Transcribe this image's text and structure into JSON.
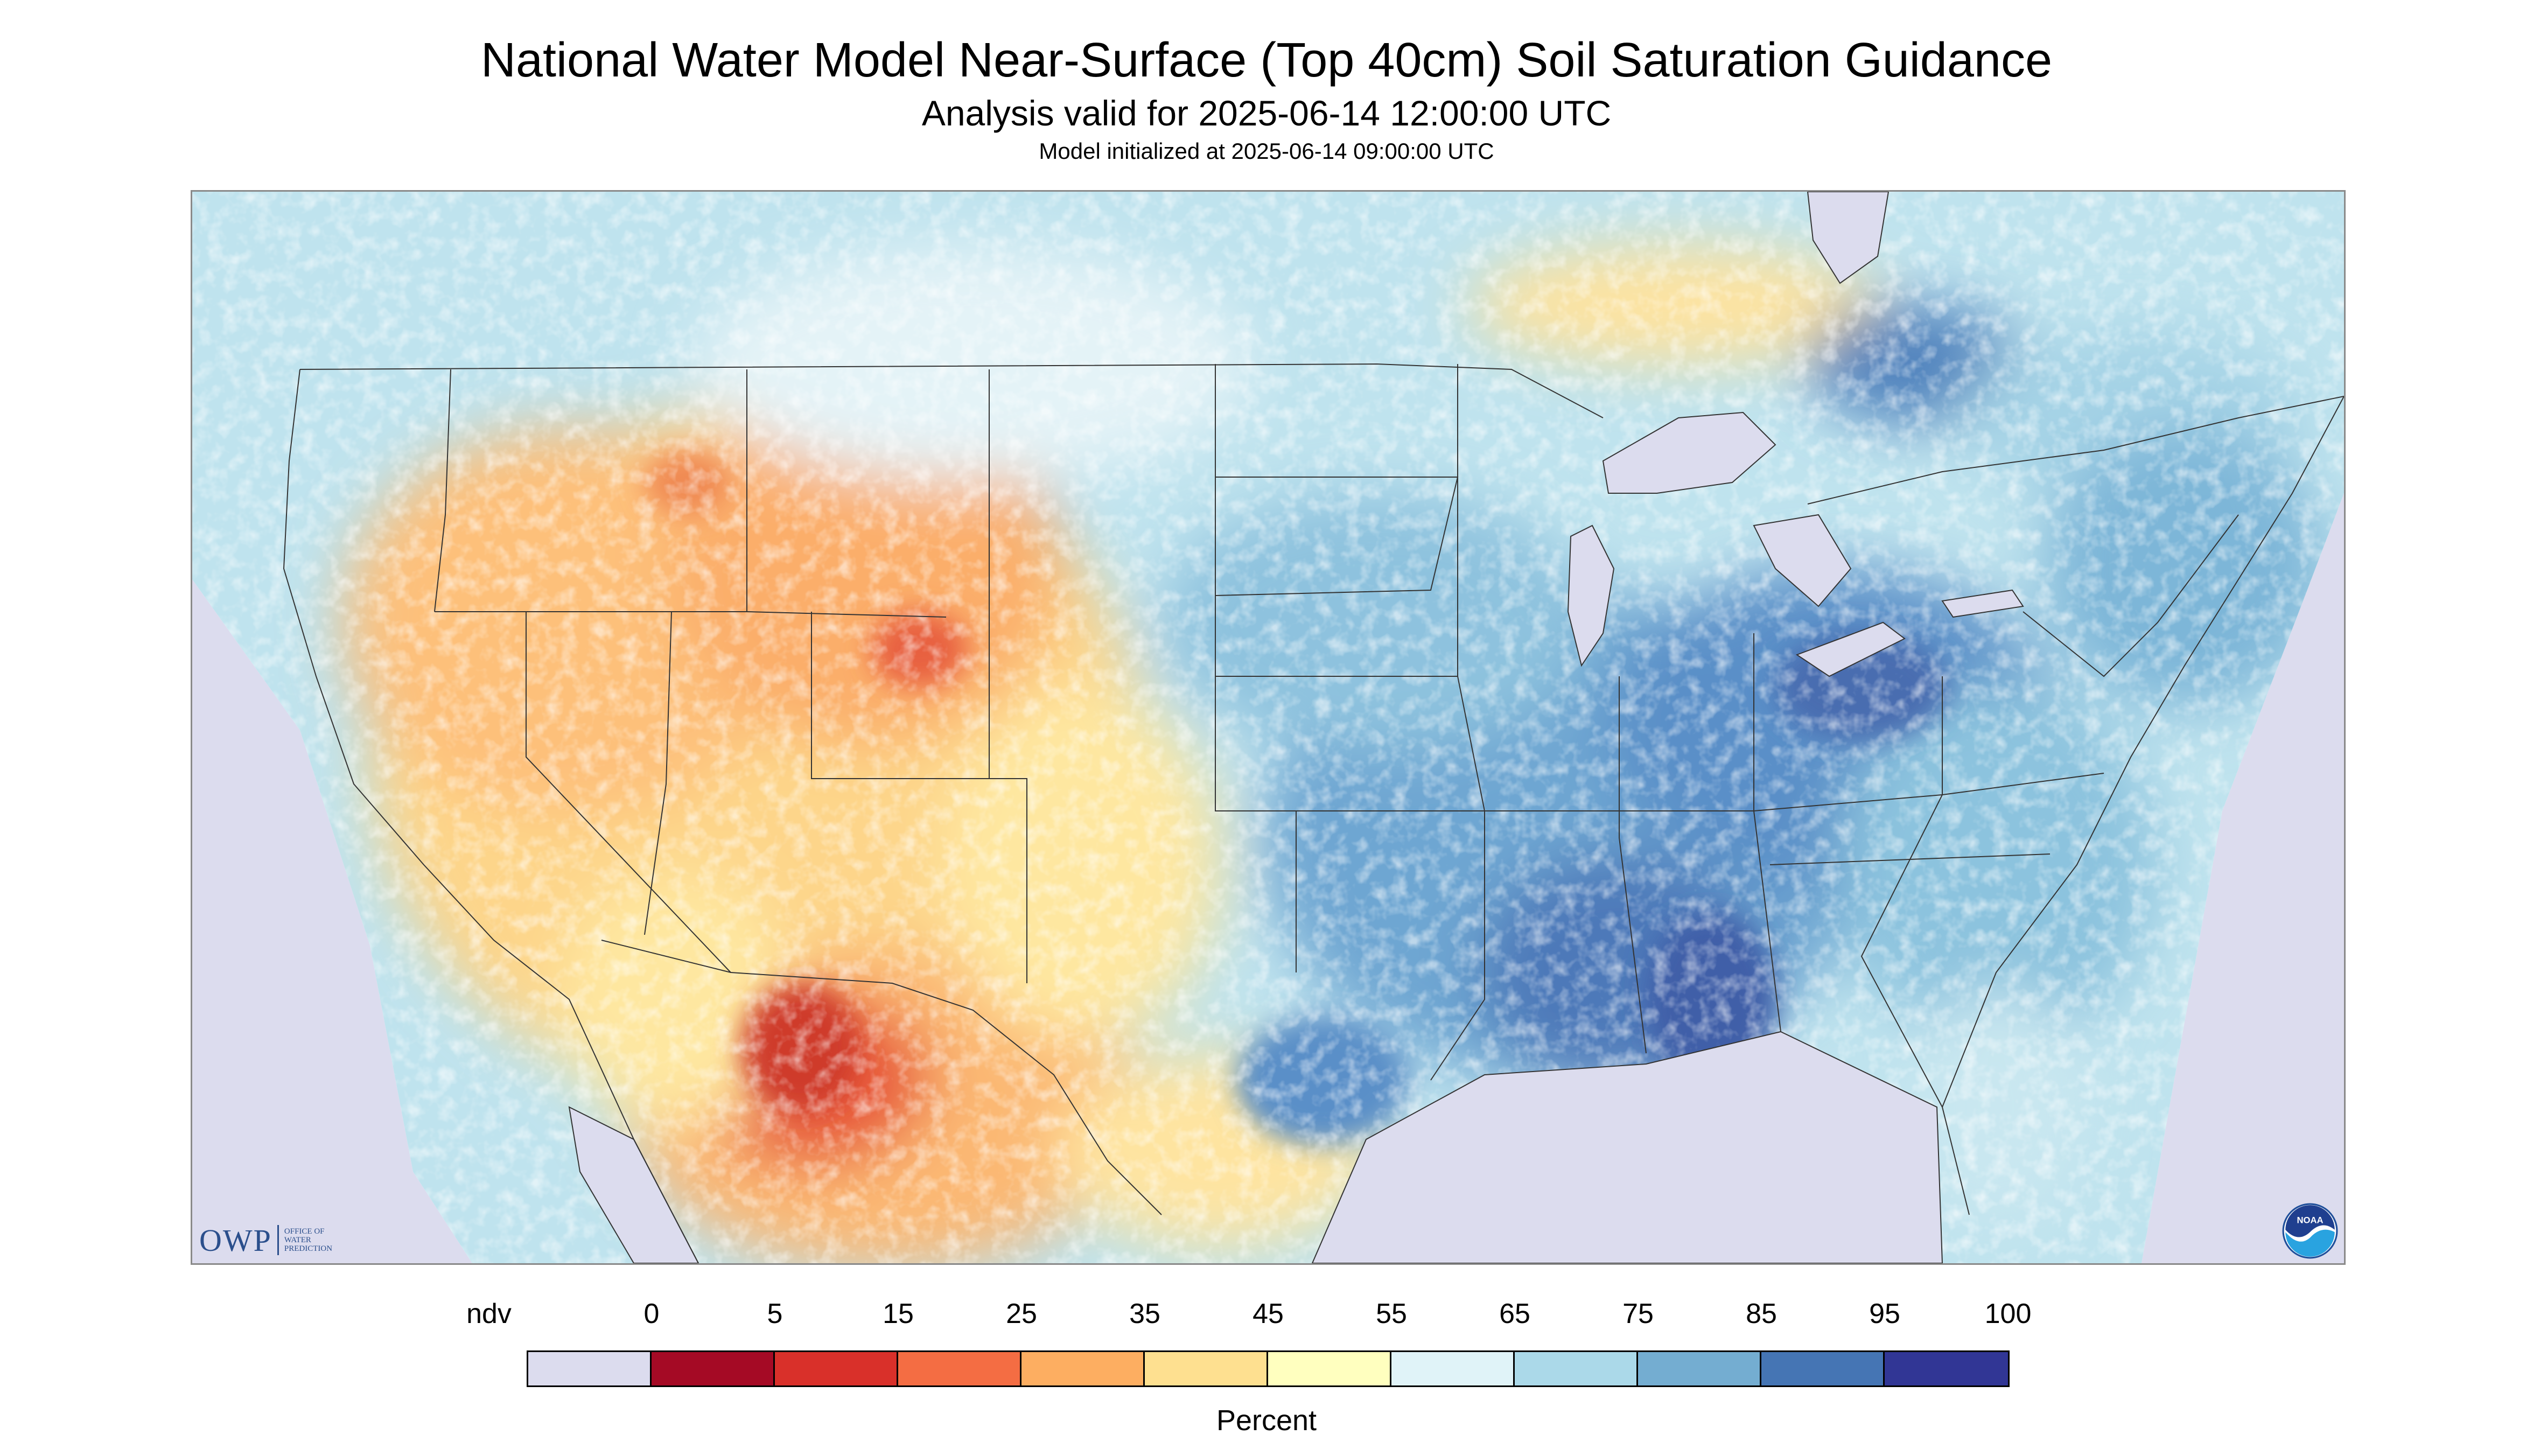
{
  "header": {
    "title": "National Water Model Near-Surface (Top 40cm) Soil Saturation Guidance",
    "subtitle": "Analysis valid for 2025-06-14 12:00:00 UTC",
    "init": "Model initialized at 2025-06-14 09:00:00 UTC"
  },
  "logos": {
    "owp_mark": "OWP",
    "owp_text": "OFFICE OF\nWATER\nPREDICTION",
    "noaa_text": "NOAA"
  },
  "legend": {
    "unit": "Percent",
    "labels": [
      "ndv",
      "0",
      "5",
      "15",
      "25",
      "35",
      "45",
      "55",
      "65",
      "75",
      "85",
      "95",
      "100"
    ],
    "colors": [
      "#dcdcee",
      "#a50a25",
      "#d9302a",
      "#f46d43",
      "#fdae61",
      "#fee090",
      "#ffffbf",
      "#e0f3f8",
      "#abd9e9",
      "#74add1",
      "#4575b4",
      "#313695"
    ]
  },
  "map": {
    "water_color": "#dcdcee",
    "border_color": "#333333"
  }
}
